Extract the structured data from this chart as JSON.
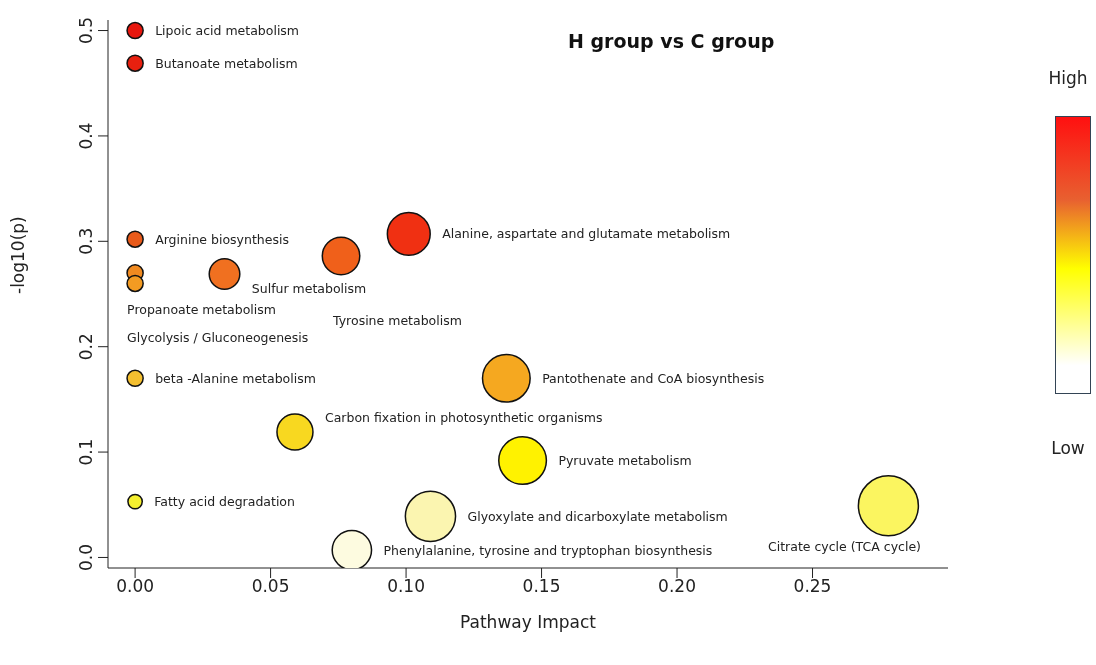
{
  "chart_data": {
    "type": "bubble",
    "title": "H group vs C group",
    "xlabel": "Pathway Impact",
    "ylabel": "-log10(p)",
    "x": [
      0,
      0,
      0,
      0,
      0,
      0.033,
      0.076,
      0.101,
      0,
      0.059,
      0,
      0.109,
      0.08,
      0.137,
      0.143,
      0.278
    ],
    "values": [
      0.5,
      0.469,
      0.302,
      0.27,
      0.26,
      0.269,
      0.286,
      0.307,
      0.17,
      0.119,
      0.053,
      0.039,
      0.007,
      0.17,
      0.092,
      0.049
    ],
    "value_labels": [
      "Lipoic acid metabolism",
      "Butanoate metabolism",
      "Arginine biosynthesis",
      "Propanoate metabolism",
      "Glycolysis / Gluconeogenesis",
      "Sulfur metabolism",
      "Tyrosine metabolism",
      "Alanine, aspartate and glutamate metabolism",
      "beta -Alanine metabolism",
      "Carbon fixation in photosynthetic organisms",
      "Fatty acid degradation",
      "Glyoxylate and dicarboxylate metabolism",
      "Phenylalanine, tyrosine and tryptophan biosynthesis",
      "Pantothenate and CoA biosynthesis",
      "Pyruvate metabolism",
      "Citrate cycle (TCA cycle)"
    ],
    "sizes": [
      0.072,
      0.072,
      0.072,
      0.072,
      0.072,
      0.26,
      0.39,
      0.51,
      0.072,
      0.36,
      0.057,
      0.7,
      0.43,
      0.63,
      0.63,
      1
    ],
    "colors": [
      "#e8170e",
      "#e8200f",
      "#e85a1a",
      "#f08a20",
      "#f39b22",
      "#f07020",
      "#f0601a",
      "#f03012",
      "#f5c030",
      "#f8d820",
      "#f5f030",
      "#fbf5b0",
      "#fdfbe0",
      "#f5a820",
      "#fff200",
      "#fbf560"
    ],
    "marker": "circle",
    "xlim": [
      -0.01,
      0.3
    ],
    "xticks": [
      {
        "value": 0,
        "label": "0.00"
      },
      0.05,
      {
        "value": 0.1,
        "label": "0.10"
      },
      0.15,
      {
        "value": 0.2,
        "label": "0.20"
      },
      0.25
    ],
    "ylim": [
      -0.01,
      0.51
    ],
    "yticks": [
      {
        "value": 0,
        "label": "0.0"
      },
      0.1,
      0.2,
      0.3,
      0.4,
      0.5
    ],
    "annotations": [
      "High",
      "Low"
    ]
  }
}
